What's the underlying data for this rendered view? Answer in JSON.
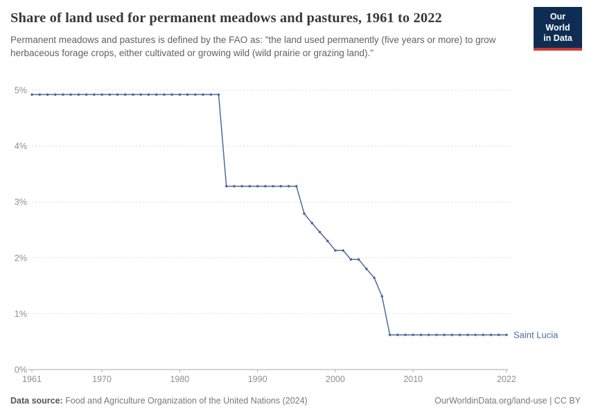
{
  "header": {
    "title": "Share of land used for permanent meadows and pastures, 1961 to 2022",
    "subtitle": "Permanent meadows and pastures is defined by the FAO as: \"the land used permanently (five years or more) to grow herbaceous forage crops, either cultivated or growing wild (wild prairie or grazing land).\"",
    "logo": {
      "line1": "Our World",
      "line2": "in Data"
    }
  },
  "chart_data": {
    "type": "line",
    "title": "Share of land used for permanent meadows and pastures, 1961 to 2022",
    "xlabel": "",
    "ylabel": "",
    "grid": "horizontal-dashed",
    "legend_position": "end-of-line-label",
    "xlim": [
      1961,
      2022
    ],
    "ylim": [
      0,
      5
    ],
    "x_ticks": [
      1961,
      1970,
      1980,
      1990,
      2000,
      2010,
      2022
    ],
    "x_tick_labels": [
      "1961",
      "1970",
      "1980",
      "1990",
      "2000",
      "2010",
      "2022"
    ],
    "y_ticks": [
      0,
      1,
      2,
      3,
      4,
      5
    ],
    "y_tick_labels": [
      "0%",
      "1%",
      "2%",
      "3%",
      "4%",
      "5%"
    ],
    "series": [
      {
        "name": "Saint Lucia",
        "x": [
          1961,
          1962,
          1963,
          1964,
          1965,
          1966,
          1967,
          1968,
          1969,
          1970,
          1971,
          1972,
          1973,
          1974,
          1975,
          1976,
          1977,
          1978,
          1979,
          1980,
          1981,
          1982,
          1983,
          1984,
          1985,
          1986,
          1987,
          1988,
          1989,
          1990,
          1991,
          1992,
          1993,
          1994,
          1995,
          1996,
          1997,
          1998,
          1999,
          2000,
          2001,
          2002,
          2003,
          2004,
          2005,
          2006,
          2007,
          2008,
          2009,
          2010,
          2011,
          2012,
          2013,
          2014,
          2015,
          2016,
          2017,
          2018,
          2019,
          2020,
          2021,
          2022
        ],
        "values": [
          4.92,
          4.92,
          4.92,
          4.92,
          4.92,
          4.92,
          4.92,
          4.92,
          4.92,
          4.92,
          4.92,
          4.92,
          4.92,
          4.92,
          4.92,
          4.92,
          4.92,
          4.92,
          4.92,
          4.92,
          4.92,
          4.92,
          4.92,
          4.92,
          4.92,
          3.28,
          3.28,
          3.28,
          3.28,
          3.28,
          3.28,
          3.28,
          3.28,
          3.28,
          3.28,
          2.79,
          2.62,
          2.46,
          2.3,
          2.13,
          2.13,
          1.97,
          1.97,
          1.8,
          1.64,
          1.31,
          0.62,
          0.62,
          0.62,
          0.62,
          0.62,
          0.62,
          0.62,
          0.62,
          0.62,
          0.62,
          0.62,
          0.62,
          0.62,
          0.62,
          0.62,
          0.62
        ]
      }
    ],
    "entity_label": "Saint Lucia",
    "line_color": "#4c6a9c",
    "grid_color": "#dcdcdc",
    "axis_color": "#a9a9a9",
    "tick_label_color": "#8e8e8e"
  },
  "footer": {
    "datasource_label": "Data source:",
    "datasource_text": " Food and Agriculture Organization of the United Nations (2024)",
    "rights": "OurWorldinData.org/land-use | CC BY"
  }
}
